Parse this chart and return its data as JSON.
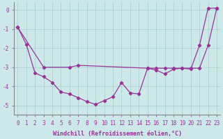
{
  "x_zigzag": [
    0,
    1,
    2,
    3,
    4,
    5,
    6,
    7,
    8,
    9,
    10,
    11,
    12,
    13,
    14,
    15,
    16,
    17,
    18,
    19,
    20,
    21,
    22,
    23
  ],
  "y_zigzag": [
    -0.9,
    -1.8,
    -3.3,
    -3.5,
    -3.8,
    -4.3,
    -4.4,
    -4.6,
    -4.8,
    -4.95,
    -4.75,
    -4.55,
    -3.8,
    -4.35,
    -4.4,
    -3.05,
    -3.15,
    -3.35,
    -3.1,
    -3.05,
    -3.1,
    -1.85,
    0.1,
    0.1
  ],
  "x_upper": [
    0,
    3,
    6,
    7,
    15,
    16,
    17,
    18,
    19,
    20,
    21,
    22,
    23
  ],
  "y_upper": [
    -0.9,
    -3.0,
    -3.0,
    -2.9,
    -3.05,
    -3.05,
    -3.05,
    -3.05,
    -3.05,
    -3.05,
    -3.05,
    -1.85,
    0.1
  ],
  "color": "#993399",
  "bg_color": "#cce8e8",
  "grid_color": "#a8cccc",
  "xlabel": "Windchill (Refroidissement éolien,°C)",
  "ylim": [
    -5.5,
    0.4
  ],
  "xlim": [
    -0.4,
    23.4
  ],
  "yticks": [
    0,
    -1,
    -2,
    -3,
    -4,
    -5
  ],
  "xticks": [
    0,
    1,
    2,
    3,
    4,
    5,
    6,
    7,
    8,
    9,
    10,
    11,
    12,
    13,
    14,
    15,
    16,
    17,
    18,
    19,
    20,
    21,
    22,
    23
  ],
  "tick_fontsize": 5.5,
  "label_fontsize": 6.0,
  "linewidth": 0.9,
  "markersize": 2.2
}
